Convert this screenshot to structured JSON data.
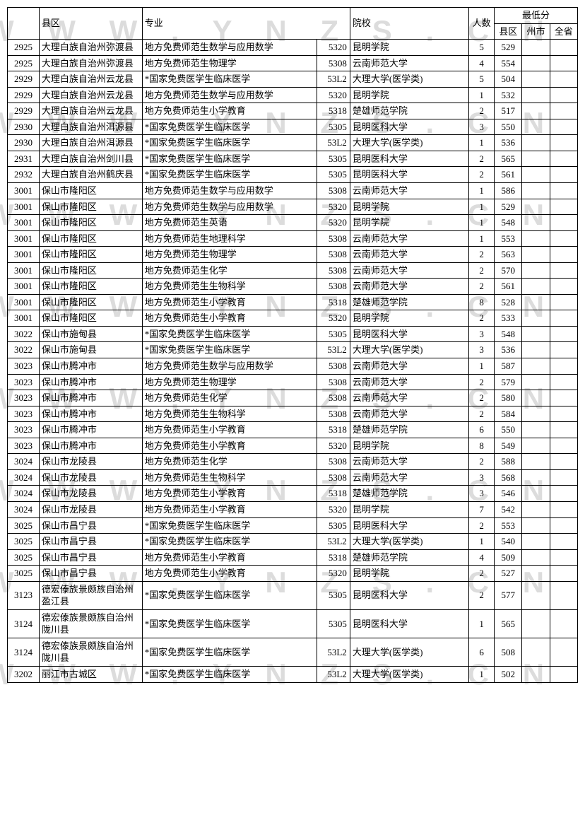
{
  "watermark_text": "W W W . Y N Z S . C N",
  "watermark_color": "#dcdcdc",
  "table": {
    "headers": {
      "xianqu": "县区",
      "zhuanye": "专业",
      "yuanxiao": "院校",
      "renshu": "人数",
      "zuidifen": "最低分",
      "xianqu2": "县区",
      "zhoushi": "州市",
      "quansheng": "全省"
    },
    "rows": [
      {
        "code": "2925",
        "xq": "大理白族自治州弥渡县",
        "zy": "地方免费师范生数学与应用数学",
        "ycode": "5320",
        "yx": "昆明学院",
        "rs": "5",
        "xq2": "529",
        "zs": "",
        "qs": ""
      },
      {
        "code": "2925",
        "xq": "大理白族自治州弥渡县",
        "zy": "地方免费师范生物理学",
        "ycode": "5308",
        "yx": "云南师范大学",
        "rs": "4",
        "xq2": "554",
        "zs": "",
        "qs": ""
      },
      {
        "code": "2929",
        "xq": "大理白族自治州云龙县",
        "zy": "*国家免费医学生临床医学",
        "ycode": "53L2",
        "yx": "大理大学(医学类)",
        "rs": "5",
        "xq2": "504",
        "zs": "",
        "qs": ""
      },
      {
        "code": "2929",
        "xq": "大理白族自治州云龙县",
        "zy": "地方免费师范生数学与应用数学",
        "ycode": "5320",
        "yx": "昆明学院",
        "rs": "1",
        "xq2": "532",
        "zs": "",
        "qs": ""
      },
      {
        "code": "2929",
        "xq": "大理白族自治州云龙县",
        "zy": "地方免费师范生小学教育",
        "ycode": "5318",
        "yx": "楚雄师范学院",
        "rs": "2",
        "xq2": "517",
        "zs": "",
        "qs": ""
      },
      {
        "code": "2930",
        "xq": "大理白族自治州洱源县",
        "zy": "*国家免费医学生临床医学",
        "ycode": "5305",
        "yx": "昆明医科大学",
        "rs": "3",
        "xq2": "550",
        "zs": "",
        "qs": ""
      },
      {
        "code": "2930",
        "xq": "大理白族自治州洱源县",
        "zy": "*国家免费医学生临床医学",
        "ycode": "53L2",
        "yx": "大理大学(医学类)",
        "rs": "1",
        "xq2": "536",
        "zs": "",
        "qs": ""
      },
      {
        "code": "2931",
        "xq": "大理白族自治州剑川县",
        "zy": "*国家免费医学生临床医学",
        "ycode": "5305",
        "yx": "昆明医科大学",
        "rs": "2",
        "xq2": "565",
        "zs": "",
        "qs": ""
      },
      {
        "code": "2932",
        "xq": "大理白族自治州鹤庆县",
        "zy": "*国家免费医学生临床医学",
        "ycode": "5305",
        "yx": "昆明医科大学",
        "rs": "2",
        "xq2": "561",
        "zs": "",
        "qs": ""
      },
      {
        "code": "3001",
        "xq": "保山市隆阳区",
        "zy": "地方免费师范生数学与应用数学",
        "ycode": "5308",
        "yx": "云南师范大学",
        "rs": "1",
        "xq2": "586",
        "zs": "",
        "qs": ""
      },
      {
        "code": "3001",
        "xq": "保山市隆阳区",
        "zy": "地方免费师范生数学与应用数学",
        "ycode": "5320",
        "yx": "昆明学院",
        "rs": "1",
        "xq2": "529",
        "zs": "",
        "qs": ""
      },
      {
        "code": "3001",
        "xq": "保山市隆阳区",
        "zy": "地方免费师范生英语",
        "ycode": "5320",
        "yx": "昆明学院",
        "rs": "1",
        "xq2": "548",
        "zs": "",
        "qs": ""
      },
      {
        "code": "3001",
        "xq": "保山市隆阳区",
        "zy": "地方免费师范生地理科学",
        "ycode": "5308",
        "yx": "云南师范大学",
        "rs": "1",
        "xq2": "553",
        "zs": "",
        "qs": ""
      },
      {
        "code": "3001",
        "xq": "保山市隆阳区",
        "zy": "地方免费师范生物理学",
        "ycode": "5308",
        "yx": "云南师范大学",
        "rs": "2",
        "xq2": "563",
        "zs": "",
        "qs": ""
      },
      {
        "code": "3001",
        "xq": "保山市隆阳区",
        "zy": "地方免费师范生化学",
        "ycode": "5308",
        "yx": "云南师范大学",
        "rs": "2",
        "xq2": "570",
        "zs": "",
        "qs": ""
      },
      {
        "code": "3001",
        "xq": "保山市隆阳区",
        "zy": "地方免费师范生生物科学",
        "ycode": "5308",
        "yx": "云南师范大学",
        "rs": "2",
        "xq2": "561",
        "zs": "",
        "qs": ""
      },
      {
        "code": "3001",
        "xq": "保山市隆阳区",
        "zy": "地方免费师范生小学教育",
        "ycode": "5318",
        "yx": "楚雄师范学院",
        "rs": "8",
        "xq2": "528",
        "zs": "",
        "qs": ""
      },
      {
        "code": "3001",
        "xq": "保山市隆阳区",
        "zy": "地方免费师范生小学教育",
        "ycode": "5320",
        "yx": "昆明学院",
        "rs": "2",
        "xq2": "533",
        "zs": "",
        "qs": ""
      },
      {
        "code": "3022",
        "xq": "保山市施甸县",
        "zy": "*国家免费医学生临床医学",
        "ycode": "5305",
        "yx": "昆明医科大学",
        "rs": "3",
        "xq2": "548",
        "zs": "",
        "qs": ""
      },
      {
        "code": "3022",
        "xq": "保山市施甸县",
        "zy": "*国家免费医学生临床医学",
        "ycode": "53L2",
        "yx": "大理大学(医学类)",
        "rs": "3",
        "xq2": "536",
        "zs": "",
        "qs": ""
      },
      {
        "code": "3023",
        "xq": "保山市腾冲市",
        "zy": "地方免费师范生数学与应用数学",
        "ycode": "5308",
        "yx": "云南师范大学",
        "rs": "1",
        "xq2": "587",
        "zs": "",
        "qs": ""
      },
      {
        "code": "3023",
        "xq": "保山市腾冲市",
        "zy": "地方免费师范生物理学",
        "ycode": "5308",
        "yx": "云南师范大学",
        "rs": "2",
        "xq2": "579",
        "zs": "",
        "qs": ""
      },
      {
        "code": "3023",
        "xq": "保山市腾冲市",
        "zy": "地方免费师范生化学",
        "ycode": "5308",
        "yx": "云南师范大学",
        "rs": "2",
        "xq2": "580",
        "zs": "",
        "qs": ""
      },
      {
        "code": "3023",
        "xq": "保山市腾冲市",
        "zy": "地方免费师范生生物科学",
        "ycode": "5308",
        "yx": "云南师范大学",
        "rs": "2",
        "xq2": "584",
        "zs": "",
        "qs": ""
      },
      {
        "code": "3023",
        "xq": "保山市腾冲市",
        "zy": "地方免费师范生小学教育",
        "ycode": "5318",
        "yx": "楚雄师范学院",
        "rs": "6",
        "xq2": "550",
        "zs": "",
        "qs": ""
      },
      {
        "code": "3023",
        "xq": "保山市腾冲市",
        "zy": "地方免费师范生小学教育",
        "ycode": "5320",
        "yx": "昆明学院",
        "rs": "8",
        "xq2": "549",
        "zs": "",
        "qs": ""
      },
      {
        "code": "3024",
        "xq": "保山市龙陵县",
        "zy": "地方免费师范生化学",
        "ycode": "5308",
        "yx": "云南师范大学",
        "rs": "2",
        "xq2": "588",
        "zs": "",
        "qs": ""
      },
      {
        "code": "3024",
        "xq": "保山市龙陵县",
        "zy": "地方免费师范生生物科学",
        "ycode": "5308",
        "yx": "云南师范大学",
        "rs": "3",
        "xq2": "568",
        "zs": "",
        "qs": ""
      },
      {
        "code": "3024",
        "xq": "保山市龙陵县",
        "zy": "地方免费师范生小学教育",
        "ycode": "5318",
        "yx": "楚雄师范学院",
        "rs": "3",
        "xq2": "546",
        "zs": "",
        "qs": ""
      },
      {
        "code": "3024",
        "xq": "保山市龙陵县",
        "zy": "地方免费师范生小学教育",
        "ycode": "5320",
        "yx": "昆明学院",
        "rs": "7",
        "xq2": "542",
        "zs": "",
        "qs": ""
      },
      {
        "code": "3025",
        "xq": "保山市昌宁县",
        "zy": "*国家免费医学生临床医学",
        "ycode": "5305",
        "yx": "昆明医科大学",
        "rs": "2",
        "xq2": "553",
        "zs": "",
        "qs": ""
      },
      {
        "code": "3025",
        "xq": "保山市昌宁县",
        "zy": "*国家免费医学生临床医学",
        "ycode": "53L2",
        "yx": "大理大学(医学类)",
        "rs": "1",
        "xq2": "540",
        "zs": "",
        "qs": ""
      },
      {
        "code": "3025",
        "xq": "保山市昌宁县",
        "zy": "地方免费师范生小学教育",
        "ycode": "5318",
        "yx": "楚雄师范学院",
        "rs": "4",
        "xq2": "509",
        "zs": "",
        "qs": ""
      },
      {
        "code": "3025",
        "xq": "保山市昌宁县",
        "zy": "地方免费师范生小学教育",
        "ycode": "5320",
        "yx": "昆明学院",
        "rs": "2",
        "xq2": "527",
        "zs": "",
        "qs": ""
      },
      {
        "code": "3123",
        "xq": "德宏傣族景颇族自治州盈江县",
        "zy": "*国家免费医学生临床医学",
        "ycode": "5305",
        "yx": "昆明医科大学",
        "rs": "2",
        "xq2": "577",
        "zs": "",
        "qs": ""
      },
      {
        "code": "3124",
        "xq": "德宏傣族景颇族自治州陇川县",
        "zy": "*国家免费医学生临床医学",
        "ycode": "5305",
        "yx": "昆明医科大学",
        "rs": "1",
        "xq2": "565",
        "zs": "",
        "qs": ""
      },
      {
        "code": "3124",
        "xq": "德宏傣族景颇族自治州陇川县",
        "zy": "*国家免费医学生临床医学",
        "ycode": "53L2",
        "yx": "大理大学(医学类)",
        "rs": "6",
        "xq2": "508",
        "zs": "",
        "qs": ""
      },
      {
        "code": "3202",
        "xq": "丽江市古城区",
        "zy": "*国家免费医学生临床医学",
        "ycode": "53L2",
        "yx": "大理大学(医学类)",
        "rs": "1",
        "xq2": "502",
        "zs": "",
        "qs": ""
      }
    ]
  }
}
